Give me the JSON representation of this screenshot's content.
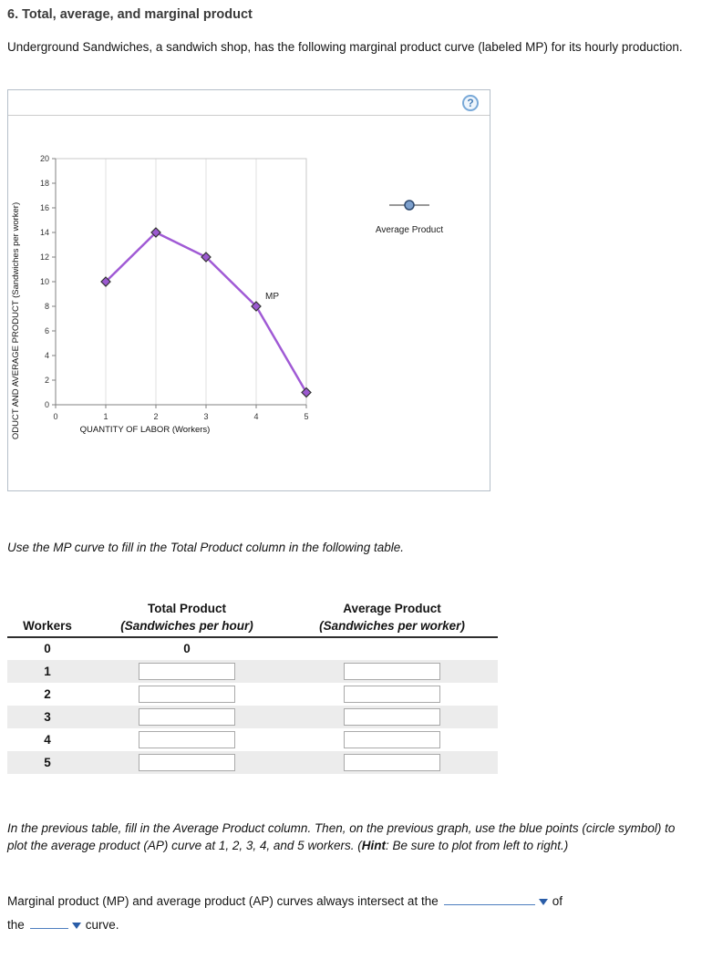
{
  "title": "6. Total, average, and marginal product",
  "intro": "Underground Sandwiches, a sandwich shop, has the following marginal product curve (labeled MP) for its hourly production.",
  "panel": {
    "help_label": "?"
  },
  "chart_data": {
    "type": "line",
    "xlabel": "QUANTITY OF LABOR (Workers)",
    "ylabel": "ODUCT AND AVERAGE PRODUCT (Sandwiches per worker)",
    "xlim": [
      0,
      5
    ],
    "ylim": [
      0,
      20
    ],
    "x_ticks": [
      0,
      1,
      2,
      3,
      4,
      5
    ],
    "y_ticks": [
      0,
      2,
      4,
      6,
      8,
      10,
      12,
      14,
      16,
      18,
      20
    ],
    "grid": "vertical",
    "series": [
      {
        "name": "MP",
        "label": "MP",
        "marker": "diamond",
        "x": [
          1,
          2,
          3,
          4,
          5
        ],
        "y": [
          10,
          14,
          12,
          8,
          1
        ]
      }
    ],
    "line_color": "#a05ad5",
    "marker_fill": "#9b59d0",
    "marker_stroke": "#333333",
    "legend": {
      "label": "Average Product",
      "marker": "circle",
      "marker_color": "#7da0cd",
      "marker_stroke": "#2f4a6e",
      "position": "right-top"
    }
  },
  "instruction_table": "Use the MP curve to fill in the Total Product column in the following table.",
  "table": {
    "headers": {
      "col1": "Workers",
      "col2": "Total Product",
      "col2_sub": "(Sandwiches per hour)",
      "col3": "Average Product",
      "col3_sub": "(Sandwiches per worker)"
    },
    "rows": [
      {
        "workers": "0",
        "total_text": "0"
      },
      {
        "workers": "1"
      },
      {
        "workers": "2"
      },
      {
        "workers": "3"
      },
      {
        "workers": "4"
      },
      {
        "workers": "5"
      }
    ]
  },
  "instruction_ap": {
    "part1": "In the previous table, fill in the Average Product column. Then, on the previous graph, use the blue points (circle symbol) to plot the average product (AP) curve at 1, 2, 3, 4, and 5 workers. (",
    "hint": "Hint",
    "part2": ": Be sure to plot from left to right.)"
  },
  "final": {
    "part1": "Marginal product (MP) and average product (AP) curves always intersect at the",
    "part2": "of",
    "part3": "the",
    "part4": "curve."
  }
}
